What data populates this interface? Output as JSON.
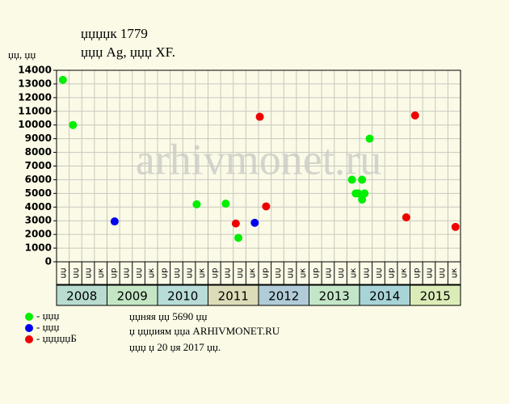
{
  "chart_data": {
    "type": "scatter",
    "title": "џџџџк 1779",
    "subtitle": "џџџ Ag, џџџ XF.",
    "y_label": "џџ, џџ",
    "watermark": "arhivmonet.ru",
    "categories": [
      "џџ",
      "џџ",
      "џџ",
      "џк",
      "џр",
      "џџ",
      "џџ",
      "џк",
      "џр",
      "џџ",
      "џџ",
      "џк",
      "џр",
      "џџ",
      "џџ",
      "џк",
      "џр",
      "џџ",
      "џџ",
      "џк",
      "џр",
      "џџ",
      "џџ",
      "џк",
      "џџ",
      "џџ",
      "џр",
      "џк",
      "џр",
      "џџ",
      "џџ",
      "џк"
    ],
    "years": [
      "2008",
      "2009",
      "2010",
      "2011",
      "2012",
      "2013",
      "2014",
      "2015"
    ],
    "year_colors": [
      "#b8dcd0",
      "#c4e6c4",
      "#b8dcd8",
      "#dcdcb8",
      "#b0ccd8",
      "#c4e6c8",
      "#a8d4d8",
      "#dcecb8"
    ],
    "xlim": [
      0,
      32
    ],
    "ylim": [
      0,
      14000
    ],
    "yticks": [
      0,
      1000,
      2000,
      3000,
      4000,
      5000,
      6000,
      7000,
      8000,
      9000,
      10000,
      11000,
      12000,
      13000,
      14000
    ],
    "grid": true,
    "series": [
      {
        "name": "- џџџ",
        "color": "#00ee00",
        "x": [
          0.5,
          1.3,
          11.1,
          13.4,
          14.4,
          23.4,
          23.7,
          23.9,
          24.2,
          24.2,
          24.4,
          24.8
        ],
        "values": [
          13300,
          10000,
          4200,
          4250,
          1750,
          6000,
          5000,
          5000,
          6000,
          4550,
          5000,
          9000
        ]
      },
      {
        "name": "- џџџ",
        "color": "#0000ee",
        "x": [
          4.6,
          15.7
        ],
        "values": [
          2950,
          2850
        ]
      },
      {
        "name": "- џџџџџБ",
        "color": "#ee0000",
        "x": [
          14.2,
          16.1,
          16.6,
          27.7,
          28.4,
          31.6
        ],
        "values": [
          2800,
          10600,
          4050,
          3250,
          10700,
          2550
        ]
      }
    ],
    "footer": [
      "џџняя џџ 5690 џџ",
      "џ џџџиям џџа ARHIVMONET.RU",
      "џџџ џ 20 џя 2017 џџ."
    ]
  }
}
